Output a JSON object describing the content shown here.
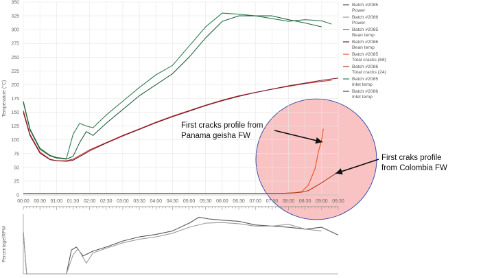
{
  "chart_data": [
    {
      "type": "line",
      "ylabel": "Temperature (°C)",
      "ylim": [
        0,
        350
      ],
      "yticks": [
        "0",
        "25",
        "50",
        "75",
        "100",
        "125",
        "150",
        "175",
        "200",
        "225",
        "250",
        "275",
        "300",
        "325",
        "350"
      ],
      "xticks": [
        "00:00",
        "00:30",
        "01:00",
        "01:30",
        "02:00",
        "02:30",
        "03:00",
        "03:30",
        "04:00",
        "04:30",
        "05:00",
        "05:30",
        "06:00",
        "06:30",
        "07:00",
        "07:30",
        "08:00",
        "08:30",
        "09:00",
        "09:30"
      ],
      "xlim_min": [
        0,
        9.5
      ],
      "grid": true,
      "legend_position": "right",
      "series": [
        {
          "name": "Batch #2085 Bean temp",
          "color": "#c0392b",
          "x": [
            0,
            0.2,
            0.5,
            0.8,
            1.0,
            1.3,
            1.5,
            1.8,
            2.0,
            2.5,
            3.0,
            3.5,
            4.0,
            4.5,
            5.0,
            5.5,
            6.0,
            6.5,
            7.0,
            7.5,
            8.0,
            8.5,
            9.0,
            9.3
          ],
          "y": [
            153,
            110,
            78,
            65,
            62,
            62,
            65,
            75,
            82,
            95,
            108,
            120,
            132,
            143,
            153,
            163,
            172,
            180,
            186,
            192,
            197,
            202,
            206,
            208
          ]
        },
        {
          "name": "Batch #2086 Bean temp",
          "color": "#7a1530",
          "x": [
            0,
            0.2,
            0.5,
            0.8,
            1.0,
            1.3,
            1.5,
            1.8,
            2.0,
            2.5,
            3.0,
            3.5,
            4.0,
            4.5,
            5.0,
            5.5,
            6.0,
            6.5,
            7.0,
            7.5,
            8.0,
            8.5,
            9.0,
            9.5
          ],
          "y": [
            150,
            108,
            76,
            64,
            62,
            61,
            63,
            73,
            80,
            94,
            107,
            119,
            131,
            142,
            152,
            162,
            171,
            179,
            186,
            192,
            198,
            203,
            208,
            212
          ]
        },
        {
          "name": "Batch #2085 Inlet temp",
          "color": "#2e7d4f",
          "x": [
            0,
            0.2,
            0.5,
            0.8,
            1.0,
            1.3,
            1.5,
            1.7,
            1.9,
            2.1,
            2.5,
            3.0,
            3.5,
            4.0,
            4.5,
            5.0,
            5.5,
            6.0,
            6.5,
            7.0,
            7.5,
            8.0,
            8.5,
            9.0,
            9.3
          ],
          "y": [
            170,
            120,
            85,
            72,
            68,
            66,
            110,
            130,
            125,
            122,
            145,
            170,
            195,
            218,
            235,
            270,
            305,
            330,
            328,
            325,
            320,
            315,
            318,
            316,
            310
          ]
        },
        {
          "name": "Batch #2086 Inlet temp",
          "color": "#1f5f3a",
          "x": [
            0,
            0.2,
            0.5,
            0.8,
            1.0,
            1.3,
            1.5,
            1.7,
            1.9,
            2.1,
            2.5,
            3.0,
            3.5,
            4.0,
            4.5,
            5.0,
            5.5,
            6.0,
            6.5,
            7.0,
            7.5,
            8.0,
            8.5,
            9.0
          ],
          "y": [
            168,
            118,
            83,
            71,
            67,
            65,
            70,
            95,
            115,
            108,
            130,
            155,
            180,
            200,
            220,
            250,
            285,
            315,
            325,
            325,
            325,
            318,
            312,
            305
          ]
        },
        {
          "name": "Batch #2085 Total cracks (68)",
          "color": "#e8501f",
          "x": [
            0,
            7.9,
            8.2,
            8.4,
            8.6,
            8.8,
            8.9,
            9.0,
            9.05
          ],
          "y": [
            3,
            3,
            4,
            6,
            18,
            48,
            78,
            100,
            120
          ]
        },
        {
          "name": "Batch #2086 Total cracks (24)",
          "color": "#b5351a",
          "x": [
            0,
            7.9,
            8.2,
            8.4,
            8.6,
            8.8,
            9.0,
            9.2,
            9.4,
            9.5
          ],
          "y": [
            3,
            3,
            4,
            5,
            8,
            15,
            22,
            30,
            38,
            42
          ]
        }
      ]
    },
    {
      "type": "line",
      "ylabel": "Percentage/RPM",
      "series": [
        {
          "name": "Batch #2085 Power",
          "color": "#555555",
          "x": [
            0,
            0.1,
            0.3,
            0.8,
            1.3,
            1.45,
            1.6,
            1.8,
            2.1,
            2.5,
            3.0,
            3.5,
            4.0,
            4.5,
            5.0,
            5.3,
            5.6,
            6.0,
            6.5,
            7.0,
            7.5,
            8.0,
            8.5,
            9.0,
            9.5
          ],
          "y": [
            70,
            0,
            0,
            0,
            0,
            40,
            45,
            30,
            38,
            45,
            55,
            62,
            66,
            72,
            85,
            95,
            92,
            90,
            88,
            82,
            80,
            78,
            75,
            78,
            65
          ]
        },
        {
          "name": "Batch #2086 Power",
          "color": "#9a9a9a",
          "x": [
            0,
            0.1,
            0.3,
            0.8,
            1.3,
            1.5,
            1.65,
            1.9,
            2.1,
            2.5,
            3.0,
            3.5,
            4.0,
            4.5,
            5.0,
            5.5,
            6.0,
            6.5,
            7.0,
            7.5,
            8.0,
            8.5,
            9.0
          ],
          "y": [
            70,
            0,
            0,
            0,
            0,
            32,
            42,
            18,
            35,
            43,
            52,
            58,
            62,
            68,
            78,
            85,
            86,
            84,
            80,
            80,
            83,
            75,
            72
          ]
        }
      ]
    }
  ],
  "legend": [
    {
      "line1": "Batch #2085",
      "line2": "Power",
      "color": "#555555"
    },
    {
      "line1": "Batch #2086",
      "line2": "Power",
      "color": "#9a9a9a"
    },
    {
      "line1": "Batch #2085",
      "line2": "Bean temp",
      "color": "#c0392b"
    },
    {
      "line1": "Batch #2086",
      "line2": "Bean temp",
      "color": "#7a1530"
    },
    {
      "line1": "Batch #2085",
      "line2": "Total cracks (68)",
      "color": "#e8501f"
    },
    {
      "line1": "Batch #2086",
      "line2": "Total cracks (24)",
      "color": "#b5351a"
    },
    {
      "line1": "Batch #2085",
      "line2": "Inlet temp",
      "color": "#2e7d4f"
    },
    {
      "line1": "Batch #2086",
      "line2": "Inlet temp",
      "color": "#1f5f3a"
    }
  ],
  "annotations": {
    "panama": {
      "line1": "First cracks profile from",
      "line2": "Panama geisha FW"
    },
    "colombia": {
      "line1": "First craks profile",
      "line2": "from Colombia FW"
    }
  },
  "colors": {
    "highlight_fill": "#f9b9b9",
    "highlight_stroke": "#3a4fa8",
    "arrow": "#111111",
    "grid": "#e6e6e6"
  }
}
